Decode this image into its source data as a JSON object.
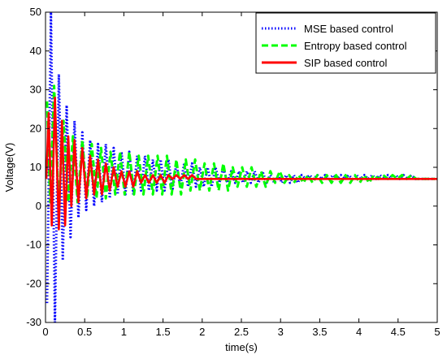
{
  "chart_data": {
    "type": "line",
    "xlabel": "time(s)",
    "ylabel": "Voltage(V)",
    "xlim": [
      0,
      5
    ],
    "ylim": [
      -30,
      50
    ],
    "xticks": [
      0,
      0.5,
      1,
      1.5,
      2,
      2.5,
      3,
      3.5,
      4,
      4.5,
      5
    ],
    "xtick_labels": [
      "0",
      "0.5",
      "1",
      "1.5",
      "2",
      "2.5",
      "3",
      "3.5",
      "4",
      "4.5",
      "5"
    ],
    "yticks": [
      -30,
      -20,
      -10,
      0,
      10,
      20,
      30,
      40,
      50
    ],
    "ytick_labels": [
      "-30",
      "-20",
      "-10",
      "0",
      "10",
      "20",
      "30",
      "40",
      "50"
    ],
    "grid": false,
    "legend_position": "top-right",
    "steady_state": 7,
    "series": [
      {
        "name": "MSE based control",
        "color": "#0000ff",
        "style": "dotted",
        "x": [
          0.02,
          0.07,
          0.12,
          0.17,
          0.22,
          0.27,
          0.32,
          0.37,
          0.42,
          0.47,
          0.52,
          0.57,
          0.62,
          0.67,
          0.72,
          0.77,
          0.82,
          0.87,
          0.92,
          0.97,
          1.02,
          1.07,
          1.12,
          1.17,
          1.22,
          1.27,
          1.32,
          1.37,
          1.42,
          1.47,
          1.52,
          1.57,
          1.62,
          1.67,
          1.72,
          1.77,
          1.82,
          1.87,
          1.92,
          1.97,
          2.02,
          2.07,
          2.12,
          2.17,
          2.22,
          2.27,
          2.32,
          2.37,
          2.42,
          2.47,
          2.52,
          2.57,
          2.62,
          2.67,
          2.72,
          2.77,
          2.82,
          2.87,
          2.92,
          2.97,
          3.02,
          3.07,
          3.12,
          3.17,
          3.22,
          3.27,
          3.32,
          3.37,
          3.42,
          3.47,
          3.52,
          3.57,
          3.62,
          3.67,
          3.72,
          3.77,
          3.82,
          3.87,
          3.92,
          3.97,
          4.02,
          4.07,
          4.12,
          4.17,
          4.22,
          4.27,
          4.32,
          4.37,
          4.42,
          4.47,
          4.52,
          4.57,
          4.62,
          4.67,
          4.72,
          4.77,
          4.82,
          4.87,
          4.92,
          4.97
        ],
        "y": [
          -25,
          50,
          -30,
          34,
          -14,
          26,
          -8,
          22,
          -3,
          19,
          -1,
          17,
          0,
          16,
          1,
          16,
          2,
          15,
          3,
          14,
          3,
          14,
          3,
          13,
          4,
          13,
          4,
          12,
          4,
          12,
          4,
          12,
          4,
          11,
          5,
          11,
          5,
          11,
          5,
          10,
          5,
          10,
          5,
          10,
          6,
          10,
          6,
          9,
          6,
          9,
          6,
          9,
          6,
          9,
          6,
          9,
          6,
          8,
          6,
          8,
          6,
          8,
          6,
          8,
          6,
          8,
          7,
          8,
          7,
          8,
          7,
          8,
          7,
          8,
          7,
          8,
          7,
          8,
          7,
          8,
          7,
          8,
          7,
          8,
          7,
          8,
          7,
          8,
          7,
          8,
          7,
          8,
          7,
          8,
          7,
          7,
          7,
          7,
          7,
          7
        ]
      },
      {
        "name": "Entropy based control",
        "color": "#00ff00",
        "style": "dashed",
        "x": [
          0.02,
          0.06,
          0.11,
          0.17,
          0.23,
          0.29,
          0.35,
          0.41,
          0.47,
          0.53,
          0.59,
          0.65,
          0.71,
          0.77,
          0.83,
          0.89,
          0.95,
          1.01,
          1.07,
          1.13,
          1.19,
          1.25,
          1.31,
          1.37,
          1.43,
          1.49,
          1.55,
          1.61,
          1.67,
          1.73,
          1.79,
          1.85,
          1.91,
          1.97,
          2.03,
          2.09,
          2.15,
          2.21,
          2.27,
          2.33,
          2.39,
          2.45,
          2.51,
          2.57,
          2.63,
          2.69,
          2.75,
          2.81,
          2.87,
          2.93,
          2.99,
          3.05,
          3.11,
          3.17,
          3.23,
          3.29,
          3.35,
          3.41,
          3.47,
          3.53,
          3.59,
          3.65,
          3.71,
          3.77,
          3.83,
          3.89,
          3.95,
          4.01,
          4.07,
          4.13,
          4.19,
          4.25,
          4.31,
          4.37,
          4.43,
          4.49,
          4.55,
          4.61,
          4.67,
          4.73,
          4.79,
          4.85,
          4.91,
          4.97
        ],
        "y": [
          27,
          1,
          31,
          0,
          22,
          1,
          18,
          1,
          17,
          2,
          16,
          2,
          15,
          2,
          14,
          3,
          14,
          3,
          14,
          3,
          13,
          3,
          13,
          3,
          13,
          3,
          13,
          3,
          12,
          3,
          12,
          4,
          12,
          4,
          11,
          4,
          11,
          4,
          11,
          4,
          10,
          5,
          10,
          5,
          10,
          5,
          9,
          5,
          9,
          6,
          9,
          6,
          8,
          6,
          8,
          6,
          8,
          6,
          8,
          6,
          8,
          6,
          8,
          6,
          8,
          6,
          8,
          6,
          8,
          6,
          8,
          7,
          8,
          7,
          8,
          7,
          8,
          7,
          8,
          7,
          7,
          7,
          7,
          7
        ]
      },
      {
        "name": "SIP based control",
        "color": "#ff0000",
        "style": "solid",
        "x": [
          0.01,
          0.04,
          0.08,
          0.12,
          0.17,
          0.21,
          0.25,
          0.29,
          0.33,
          0.37,
          0.42,
          0.47,
          0.52,
          0.57,
          0.62,
          0.67,
          0.72,
          0.77,
          0.82,
          0.87,
          0.92,
          0.97,
          1.02,
          1.07,
          1.12,
          1.17,
          1.22,
          1.27,
          1.32,
          1.37,
          1.42,
          1.47,
          1.52,
          1.57,
          1.62,
          1.67,
          1.72,
          1.77,
          1.82,
          1.87,
          1.92,
          1.97,
          2.1,
          2.3,
          2.5,
          2.7,
          2.9,
          3.1,
          3.3,
          3.5,
          3.7,
          3.9,
          4.1,
          4.3,
          4.5,
          4.7,
          4.9,
          5.0
        ],
        "y": [
          7,
          24,
          -5,
          28,
          -6,
          22,
          -5,
          18,
          0,
          17,
          1,
          15,
          2,
          13,
          3,
          12,
          3,
          11,
          4,
          10,
          5,
          9,
          5,
          9,
          5,
          9,
          6,
          8,
          6,
          8,
          6,
          8,
          6,
          8,
          7,
          8,
          7,
          8,
          7,
          8,
          7,
          7,
          7,
          7,
          7,
          7,
          7,
          7,
          7,
          7,
          7,
          7,
          7,
          7,
          7,
          7,
          7,
          7
        ]
      }
    ]
  }
}
